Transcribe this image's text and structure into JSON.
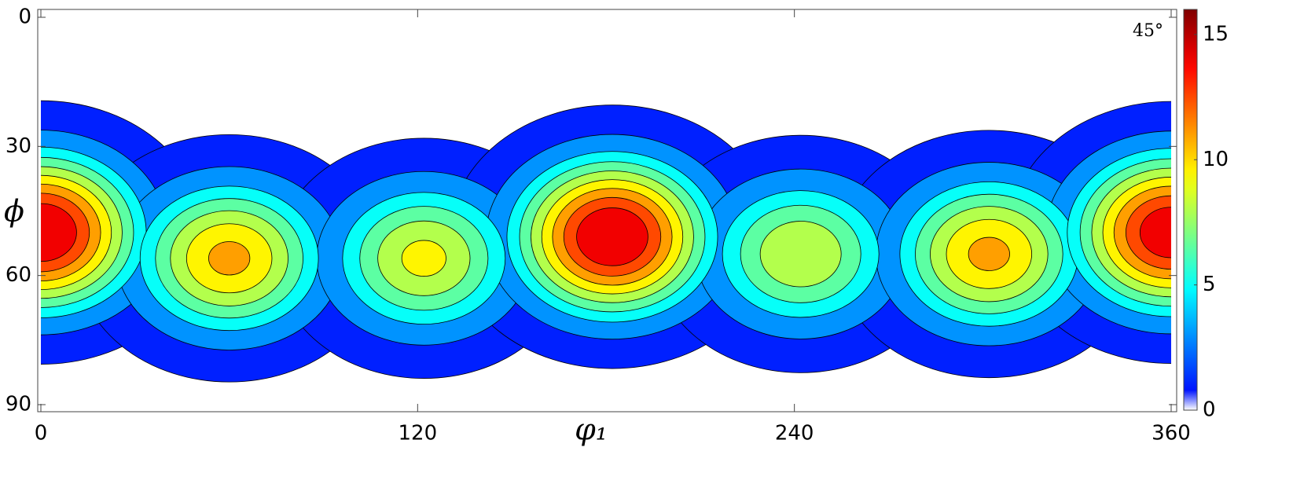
{
  "chart_data": {
    "type": "contour",
    "xlabel": "φ₁",
    "ylabel": "ϕ",
    "annotation": "45°",
    "xlim": [
      0,
      360
    ],
    "xticks": [
      0,
      120,
      240,
      360
    ],
    "ylim": [
      0,
      90
    ],
    "yticks": [
      0,
      30,
      60,
      90
    ],
    "y_inverted": true,
    "levels": [
      1,
      3,
      5,
      6.5,
      8,
      9.5,
      11,
      12.5,
      14
    ],
    "peaks": {
      "x": [
        0,
        60,
        122,
        182,
        242,
        302,
        360
      ],
      "y": [
        50,
        56,
        56,
        51,
        55,
        55,
        50
      ],
      "values": [
        16,
        11.5,
        10,
        16,
        9.5,
        11.5,
        15.5
      ]
    },
    "colorbar": {
      "lim": [
        0,
        16
      ],
      "ticks": [
        0,
        5,
        10,
        15
      ],
      "colormap": "jet"
    }
  }
}
